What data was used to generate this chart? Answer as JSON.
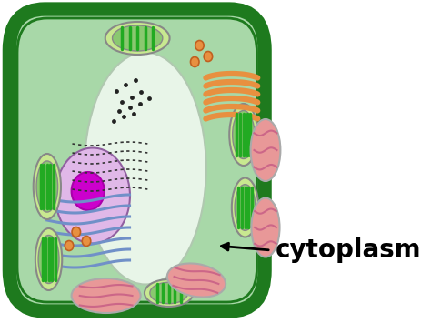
{
  "background_color": "#ffffff",
  "cell_outer_color": "#1e7a1e",
  "cell_inner_color": "#a8d8a8",
  "cell_border_color": "#1a6b1a",
  "vacuole_color": "#e8f5e8",
  "vacuole_border": "#b0c8b0",
  "nucleus_outer_color": "#e0b8e8",
  "nucleus_nucleolus_color": "#cc00cc",
  "chloroplast_face": "#8ac870",
  "chloroplast_border": "#555555",
  "chloroplast_stripe": "#22aa22",
  "chloroplast_inner_face": "#c8e890",
  "mitochondria_face": "#e89898",
  "mitochondria_border": "#999999",
  "mitochondria_inner": "#cc6688",
  "er_color": "#7090c8",
  "golgi_color": "#e89040",
  "dot_color": "#222222",
  "vesicle_color": "#e89040",
  "vesicle_border": "#c06020",
  "label_text": "cytoplasm",
  "label_fontsize": 20,
  "label_fontweight": "bold",
  "label_color": "#000000",
  "arrow_color": "#000000"
}
